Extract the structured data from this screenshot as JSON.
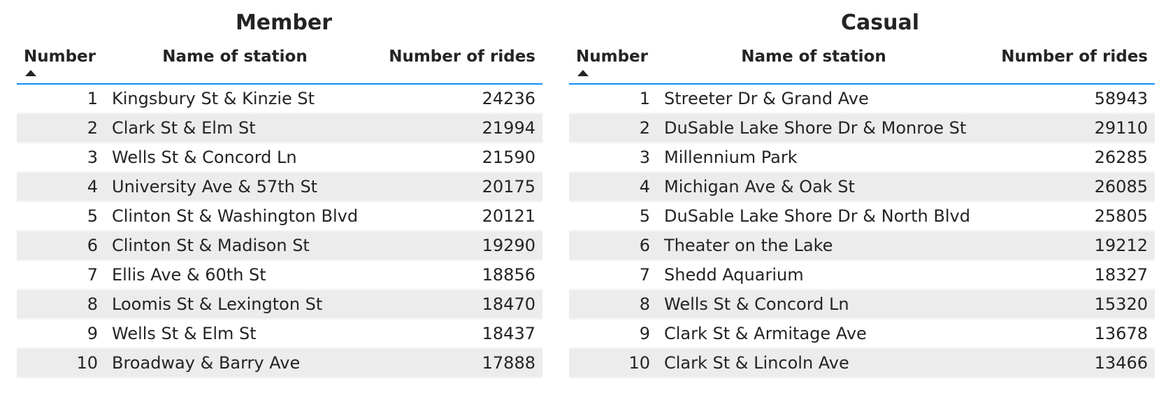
{
  "member": {
    "title": "Member",
    "headers": {
      "number": "Number",
      "station": "Name of station",
      "rides": "Number of rides"
    },
    "sort_icon": "sort-ascending-icon",
    "rows": [
      {
        "number": "1",
        "station": "Kingsbury St & Kinzie St",
        "rides": "24236"
      },
      {
        "number": "2",
        "station": "Clark St & Elm St",
        "rides": "21994"
      },
      {
        "number": "3",
        "station": "Wells St & Concord Ln",
        "rides": "21590"
      },
      {
        "number": "4",
        "station": "University Ave & 57th St",
        "rides": "20175"
      },
      {
        "number": "5",
        "station": "Clinton St & Washington Blvd",
        "rides": "20121"
      },
      {
        "number": "6",
        "station": "Clinton St & Madison St",
        "rides": "19290"
      },
      {
        "number": "7",
        "station": "Ellis Ave & 60th St",
        "rides": "18856"
      },
      {
        "number": "8",
        "station": "Loomis St & Lexington St",
        "rides": "18470"
      },
      {
        "number": "9",
        "station": "Wells St & Elm St",
        "rides": "18437"
      },
      {
        "number": "10",
        "station": "Broadway & Barry Ave",
        "rides": "17888"
      }
    ]
  },
  "casual": {
    "title": "Casual",
    "headers": {
      "number": "Number",
      "station": "Name of station",
      "rides": "Number of rides"
    },
    "sort_icon": "sort-ascending-icon",
    "rows": [
      {
        "number": "1",
        "station": "Streeter Dr & Grand Ave",
        "rides": "58943"
      },
      {
        "number": "2",
        "station": "DuSable Lake Shore Dr & Monroe St",
        "rides": "29110"
      },
      {
        "number": "3",
        "station": "Millennium Park",
        "rides": "26285"
      },
      {
        "number": "4",
        "station": "Michigan Ave & Oak St",
        "rides": "26085"
      },
      {
        "number": "5",
        "station": "DuSable Lake Shore Dr & North Blvd",
        "rides": "25805"
      },
      {
        "number": "6",
        "station": "Theater on the Lake",
        "rides": "19212"
      },
      {
        "number": "7",
        "station": "Shedd Aquarium",
        "rides": "18327"
      },
      {
        "number": "8",
        "station": "Wells St & Concord Ln",
        "rides": "15320"
      },
      {
        "number": "9",
        "station": "Clark St & Armitage Ave",
        "rides": "13678"
      },
      {
        "number": "10",
        "station": "Clark St & Lincoln Ave",
        "rides": "13466"
      }
    ]
  },
  "colors": {
    "header_rule": "#118dff",
    "stripe": "#ececec",
    "text": "#252423"
  }
}
